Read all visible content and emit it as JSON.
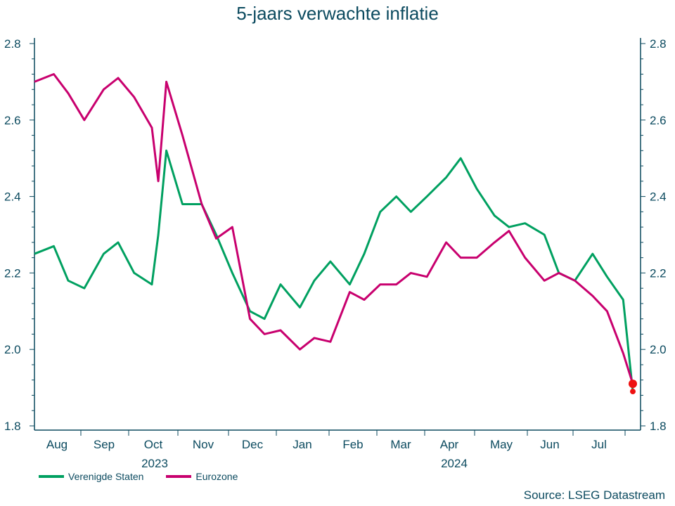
{
  "title": "5-jaars verwachte inflatie",
  "source": "Source: LSEG Datastream",
  "colors": {
    "axis": "#0b4a5f",
    "us": "#00a060",
    "ez": "#c8006e",
    "marker": "#ee1111"
  },
  "legend": [
    {
      "label": "Verenigde Staten",
      "color": "#00a060"
    },
    {
      "label": "Eurozone",
      "color": "#c8006e"
    }
  ],
  "chart_data": {
    "type": "line",
    "title": "5-jaars verwachte inflatie",
    "xlabel": "",
    "ylabel": "",
    "ylim": [
      1.8,
      2.8
    ],
    "yticks": [
      1.8,
      2.0,
      2.2,
      2.4,
      2.6,
      2.8
    ],
    "ytick_labels": [
      "1.8",
      "2.0",
      "2.2",
      "2.4",
      "2.6",
      "2.8"
    ],
    "secondary_yticks": [
      "1.8",
      "2.0",
      "2.2",
      "2.4",
      "2.6",
      "2.8"
    ],
    "xtick_labels": [
      "Aug",
      "Sep",
      "Oct",
      "Nov",
      "Dec",
      "Jan",
      "Feb",
      "Mar",
      "Apr",
      "May",
      "Jun",
      "Jul"
    ],
    "year_labels": [
      {
        "label": "2023",
        "under": "Oct"
      },
      {
        "label": "2024",
        "under": "Apr"
      }
    ],
    "grid": false,
    "legend_position": "bottom-left",
    "x": [
      "2023-07-20",
      "2023-08-01",
      "2023-08-10",
      "2023-08-20",
      "2023-09-01",
      "2023-09-10",
      "2023-09-20",
      "2023-10-01",
      "2023-10-05",
      "2023-10-10",
      "2023-10-20",
      "2023-11-01",
      "2023-11-10",
      "2023-11-20",
      "2023-12-01",
      "2023-12-10",
      "2023-12-20",
      "2024-01-01",
      "2024-01-10",
      "2024-01-20",
      "2024-02-01",
      "2024-02-10",
      "2024-02-20",
      "2024-03-01",
      "2024-03-10",
      "2024-03-20",
      "2024-04-01",
      "2024-04-10",
      "2024-04-20",
      "2024-05-01",
      "2024-05-10",
      "2024-05-20",
      "2024-06-01",
      "2024-06-10",
      "2024-06-20",
      "2024-07-01",
      "2024-07-10",
      "2024-07-20",
      "2024-07-26"
    ],
    "series": [
      {
        "name": "Verenigde Staten",
        "values": [
          2.25,
          2.27,
          2.18,
          2.16,
          2.25,
          2.28,
          2.2,
          2.17,
          2.3,
          2.52,
          2.38,
          2.38,
          2.3,
          2.2,
          2.1,
          2.08,
          2.17,
          2.11,
          2.18,
          2.23,
          2.17,
          2.25,
          2.36,
          2.4,
          2.36,
          2.4,
          2.45,
          2.5,
          2.42,
          2.35,
          2.32,
          2.33,
          2.3,
          2.2,
          2.18,
          2.25,
          2.19,
          2.13,
          1.89
        ]
      },
      {
        "name": "Eurozone",
        "values": [
          2.7,
          2.72,
          2.67,
          2.6,
          2.68,
          2.71,
          2.66,
          2.58,
          2.44,
          2.7,
          2.56,
          2.38,
          2.29,
          2.32,
          2.08,
          2.04,
          2.05,
          2.0,
          2.03,
          2.02,
          2.15,
          2.13,
          2.17,
          2.17,
          2.2,
          2.19,
          2.28,
          2.24,
          2.24,
          2.28,
          2.31,
          2.24,
          2.18,
          2.2,
          2.18,
          2.14,
          2.1,
          1.99,
          1.91
        ]
      }
    ],
    "markers": [
      {
        "series": "Eurozone",
        "value": 1.91
      },
      {
        "series": "Verenigde Staten",
        "value": 1.89
      }
    ]
  }
}
